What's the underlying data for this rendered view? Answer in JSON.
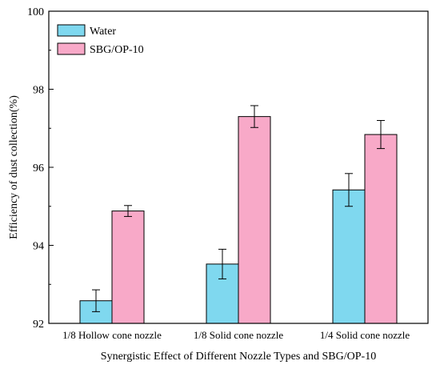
{
  "chart_data": {
    "type": "bar",
    "title": "",
    "xlabel": "Synergistic Effect of Different Nozzle Types and SBG/OP-10",
    "ylabel": "Efficiency of dust collection(%)",
    "ylim": [
      92,
      100
    ],
    "yticks": [
      92,
      94,
      96,
      98,
      100
    ],
    "categories": [
      "1/8 Hollow cone nozzle",
      "1/8 Solid cone nozzle",
      "1/4 Solid cone nozzle"
    ],
    "series": [
      {
        "name": "Water",
        "color": "#7fd8ef",
        "values": [
          92.58,
          93.52,
          95.42
        ],
        "errors": [
          0.28,
          0.38,
          0.42
        ]
      },
      {
        "name": "SBG/OP-10",
        "color": "#f8a9c8",
        "values": [
          94.88,
          97.3,
          96.84
        ],
        "errors": [
          0.14,
          0.28,
          0.36
        ]
      }
    ],
    "legend": "top-left",
    "grid": false
  }
}
